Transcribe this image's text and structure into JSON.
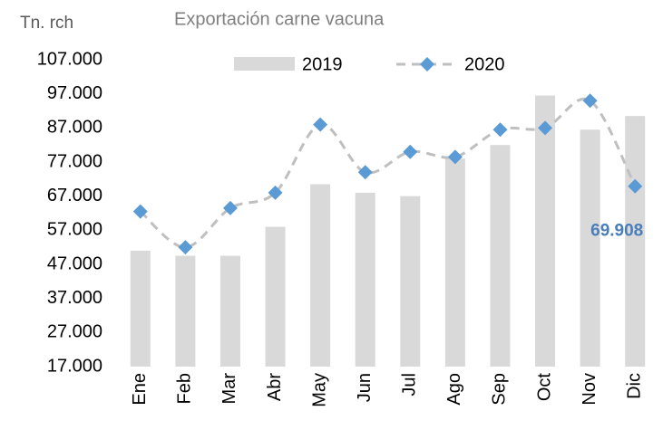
{
  "chart_data": {
    "type": "bar_line",
    "title": "Exportación carne vacuna",
    "y_label": "Tn. rch",
    "categories": [
      "Ene",
      "Feb",
      "Mar",
      "Abr",
      "May",
      "Jun",
      "Jul",
      "Ago",
      "Sep",
      "Oct",
      "Nov",
      "Dic"
    ],
    "series": [
      {
        "name": "2019",
        "type": "bar",
        "color": "#d9d9d9",
        "values": [
          51000,
          49500,
          49500,
          58000,
          70500,
          68000,
          67000,
          78000,
          82000,
          96500,
          86500,
          90500
        ]
      },
      {
        "name": "2020",
        "type": "line",
        "color": "#5b9bd5",
        "line_color": "#bfbfbf",
        "values": [
          62500,
          52000,
          63500,
          68000,
          88000,
          74000,
          80000,
          78500,
          86500,
          87000,
          95000,
          69908
        ],
        "value_labels": [
          null,
          null,
          null,
          null,
          null,
          null,
          null,
          null,
          null,
          null,
          null,
          "69.908"
        ]
      }
    ],
    "ylim": [
      17000,
      107000
    ],
    "yticks": [
      {
        "value": 17000,
        "label": "17.000"
      },
      {
        "value": 27000,
        "label": "27.000"
      },
      {
        "value": 37000,
        "label": "37.000"
      },
      {
        "value": 47000,
        "label": "47.000"
      },
      {
        "value": 57000,
        "label": "57.000"
      },
      {
        "value": 67000,
        "label": "67.000"
      },
      {
        "value": 77000,
        "label": "77.000"
      },
      {
        "value": 87000,
        "label": "87.000"
      },
      {
        "value": 97000,
        "label": "97.000"
      },
      {
        "value": 107000,
        "label": "107.000"
      }
    ],
    "legend": "top"
  }
}
